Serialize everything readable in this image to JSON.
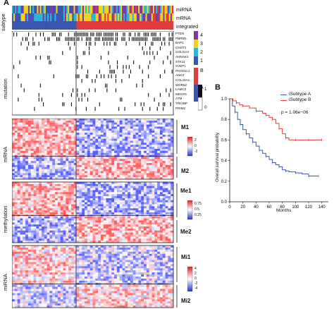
{
  "panel_a": {
    "letter": "A",
    "subtype_label": "subtype",
    "subtype_bar_labels": [
      "miRNA",
      "mRNA",
      "integrated"
    ],
    "legend_numbers": [
      "4",
      "3",
      "2",
      "1"
    ],
    "legend_letters": [
      "B",
      "A"
    ],
    "mutation_label": "mutation",
    "genes": [
      "PTEN",
      "PBRM1",
      "BAP1",
      "CNOT1",
      "GOLGA3",
      "AHNAK2",
      "STK11",
      "SVEP1",
      "PKHD1L1",
      "ANK3",
      "COL24A1",
      "WDR52",
      "LAMC2",
      "MEGF6",
      "ATM",
      "TRIOBP",
      "PRIM2"
    ],
    "mutation_scale": [
      "1",
      "0"
    ],
    "heatmaps": [
      {
        "label": "mRNA",
        "clusters": [
          "M1",
          "M2"
        ],
        "scale_ticks": [
          "2",
          "0",
          "-2"
        ]
      },
      {
        "label": "methylation",
        "clusters": [
          "Me1",
          "Me2"
        ],
        "scale_ticks": [
          "0.75",
          "0.5",
          "0.25"
        ]
      },
      {
        "label": "miRNA",
        "clusters": [
          "Mi1",
          "Mi2"
        ],
        "scale_ticks": [
          "4",
          "2",
          "0",
          "-2",
          "-4"
        ]
      }
    ],
    "colors": {
      "subtype_a": "#3b55b0",
      "subtype_b": "#e23b3b",
      "purple": "#7a3aa8",
      "cyan": "#2bb5d6",
      "yellow": "#f2d21b"
    }
  },
  "panel_b": {
    "letter": "B",
    "chart_data": {
      "type": "line",
      "title": "",
      "xlabel": "Months",
      "ylabel": "Overall survival probability",
      "xlim": [
        0,
        150
      ],
      "ylim": [
        0,
        1.0
      ],
      "x_ticks": [
        "0",
        "20",
        "40",
        "60",
        "80",
        "100",
        "120",
        "140"
      ],
      "y_ticks": [
        "0.0",
        "0.2",
        "0.4",
        "0.6",
        "0.8",
        "1.0"
      ],
      "legend_position": "top-right",
      "annotation": "p = 1.06e−06",
      "series": [
        {
          "name": "iSubtype A",
          "color": "#3b55b0",
          "x": [
            0,
            4,
            8,
            12,
            16,
            20,
            25,
            30,
            35,
            40,
            45,
            50,
            55,
            60,
            65,
            70,
            75,
            80,
            85,
            90,
            100,
            110,
            120,
            128,
            135
          ],
          "y": [
            1.0,
            0.93,
            0.87,
            0.8,
            0.75,
            0.7,
            0.66,
            0.62,
            0.58,
            0.54,
            0.5,
            0.47,
            0.44,
            0.41,
            0.38,
            0.36,
            0.34,
            0.31,
            0.3,
            0.29,
            0.28,
            0.27,
            0.25,
            0.25,
            0.25
          ]
        },
        {
          "name": "iSubtype B",
          "color": "#e23b3b",
          "x": [
            0,
            5,
            10,
            15,
            20,
            30,
            40,
            50,
            55,
            60,
            65,
            70,
            75,
            80,
            85,
            90,
            100,
            110,
            120,
            130,
            140
          ],
          "y": [
            1.0,
            0.98,
            0.96,
            0.94,
            0.93,
            0.91,
            0.88,
            0.86,
            0.84,
            0.82,
            0.8,
            0.76,
            0.71,
            0.66,
            0.62,
            0.6,
            0.6,
            0.6,
            0.6,
            0.6,
            0.6
          ]
        }
      ]
    }
  }
}
